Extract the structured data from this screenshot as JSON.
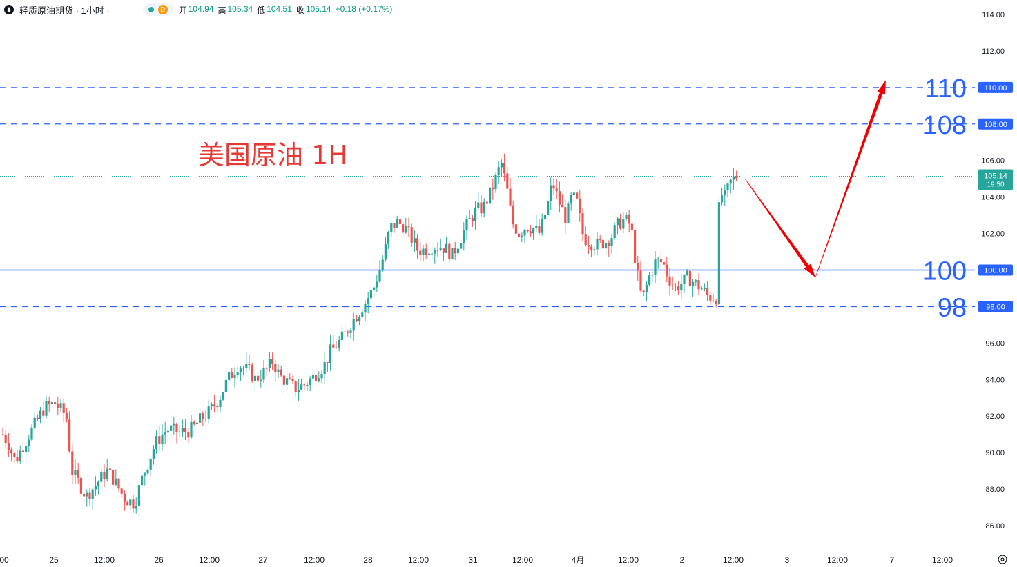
{
  "header": {
    "title": "轻质原油期货 · 1小时 ·",
    "d_badge": "D",
    "open_label": "开",
    "open": "104.94",
    "high_label": "高",
    "high": "105.34",
    "low_label": "低",
    "low": "104.51",
    "close_label": "收",
    "close": "105.14",
    "change": "+0.18 (+0.17%)"
  },
  "colors": {
    "up": "#26a69a",
    "down": "#ef5350",
    "level": "#2962ff",
    "arrow": "#f00000",
    "annotation": "#e53935"
  },
  "chart_data": {
    "type": "candlestick",
    "annotation": "美国原油 1H",
    "y_ticks": [
      "114.00",
      "112.00",
      "110.00",
      "108.00",
      "106.00",
      "104.00",
      "102.00",
      "100.00",
      "98.00",
      "96.00",
      "94.00",
      "92.00",
      "90.00",
      "88.00",
      "86.00"
    ],
    "ylim": [
      85,
      114.5
    ],
    "x_ticks": [
      "00",
      "25",
      "12:00",
      "26",
      "12:00",
      "27",
      "12:00",
      "28",
      "12:00",
      "31",
      "12:00",
      "4月",
      "12:00",
      "2",
      "12:00",
      "3",
      "12:00",
      "7",
      "12:00"
    ],
    "levels": [
      {
        "value": 110,
        "label": "110",
        "tag": "110.00",
        "style": "dashed"
      },
      {
        "value": 108,
        "label": "108",
        "tag": "108.00",
        "style": "dashed"
      },
      {
        "value": 100,
        "label": "100",
        "tag": "100.00",
        "style": "solid"
      },
      {
        "value": 98,
        "label": "98",
        "tag": "98.00",
        "style": "dashed"
      }
    ],
    "last_price": {
      "value": 105.14,
      "tag": "105.14",
      "time": "19:50"
    },
    "projection": [
      {
        "x": 1079,
        "y": 105.0
      },
      {
        "x": 1181,
        "y": 99.6
      },
      {
        "x": 1283,
        "y": 110.4
      }
    ],
    "candles_anchor_prices": [
      [
        4,
        91.0
      ],
      [
        12,
        90.5
      ],
      [
        22,
        89.5
      ],
      [
        35,
        90.5
      ],
      [
        50,
        91.5
      ],
      [
        65,
        92.5
      ],
      [
        80,
        92.7
      ],
      [
        96,
        92.0
      ],
      [
        104,
        89.0
      ],
      [
        112,
        88.5
      ],
      [
        125,
        87.6
      ],
      [
        140,
        88.3
      ],
      [
        155,
        89.0
      ],
      [
        165,
        88.5
      ],
      [
        180,
        87.5
      ],
      [
        195,
        87.2
      ],
      [
        205,
        88.5
      ],
      [
        215,
        89.5
      ],
      [
        225,
        90.5
      ],
      [
        235,
        91.0
      ],
      [
        245,
        91.3
      ],
      [
        260,
        91.1
      ],
      [
        275,
        91.2
      ],
      [
        290,
        91.8
      ],
      [
        305,
        92.3
      ],
      [
        318,
        93.0
      ],
      [
        330,
        94.0
      ],
      [
        345,
        94.8
      ],
      [
        360,
        94.5
      ],
      [
        370,
        94.0
      ],
      [
        385,
        94.5
      ],
      [
        395,
        95.0
      ],
      [
        405,
        94.2
      ],
      [
        418,
        93.8
      ],
      [
        428,
        93.5
      ],
      [
        440,
        93.7
      ],
      [
        455,
        94.2
      ],
      [
        470,
        94.8
      ],
      [
        478,
        95.5
      ],
      [
        490,
        96.0
      ],
      [
        500,
        96.5
      ],
      [
        512,
        97.3
      ],
      [
        522,
        97.8
      ],
      [
        530,
        98.3
      ],
      [
        540,
        98.9
      ],
      [
        548,
        99.8
      ],
      [
        556,
        100.8
      ],
      [
        565,
        102.3
      ],
      [
        575,
        102.6
      ],
      [
        585,
        102.4
      ],
      [
        595,
        101.8
      ],
      [
        605,
        101.1
      ],
      [
        615,
        101.1
      ],
      [
        625,
        101.3
      ],
      [
        635,
        101.3
      ],
      [
        645,
        101.2
      ],
      [
        655,
        100.8
      ],
      [
        665,
        101.6
      ],
      [
        675,
        102.4
      ],
      [
        690,
        103.3
      ],
      [
        700,
        103.4
      ],
      [
        710,
        104.2
      ],
      [
        718,
        105.0
      ],
      [
        726,
        105.9
      ],
      [
        734,
        104.5
      ],
      [
        742,
        102.6
      ],
      [
        752,
        102.0
      ],
      [
        762,
        102.4
      ],
      [
        772,
        102.3
      ],
      [
        782,
        102.0
      ],
      [
        792,
        103.4
      ],
      [
        800,
        104.8
      ],
      [
        810,
        103.7
      ],
      [
        820,
        102.8
      ],
      [
        828,
        104.0
      ],
      [
        835,
        103.8
      ],
      [
        845,
        101.8
      ],
      [
        855,
        101.5
      ],
      [
        865,
        101.4
      ],
      [
        875,
        101.5
      ],
      [
        885,
        101.8
      ],
      [
        895,
        102.5
      ],
      [
        905,
        102.8
      ],
      [
        914,
        102.4
      ],
      [
        922,
        100.0
      ],
      [
        930,
        98.3
      ],
      [
        940,
        99.6
      ],
      [
        950,
        100.5
      ],
      [
        960,
        100.4
      ],
      [
        968,
        99.6
      ],
      [
        978,
        99.0
      ],
      [
        988,
        99.3
      ],
      [
        996,
        99.6
      ],
      [
        1006,
        99.3
      ],
      [
        1016,
        99.0
      ],
      [
        1024,
        98.6
      ],
      [
        1032,
        98.5
      ],
      [
        1038,
        98.5
      ],
      [
        1042,
        104.2
      ],
      [
        1050,
        104.0
      ],
      [
        1058,
        104.8
      ],
      [
        1066,
        105.14
      ]
    ]
  }
}
